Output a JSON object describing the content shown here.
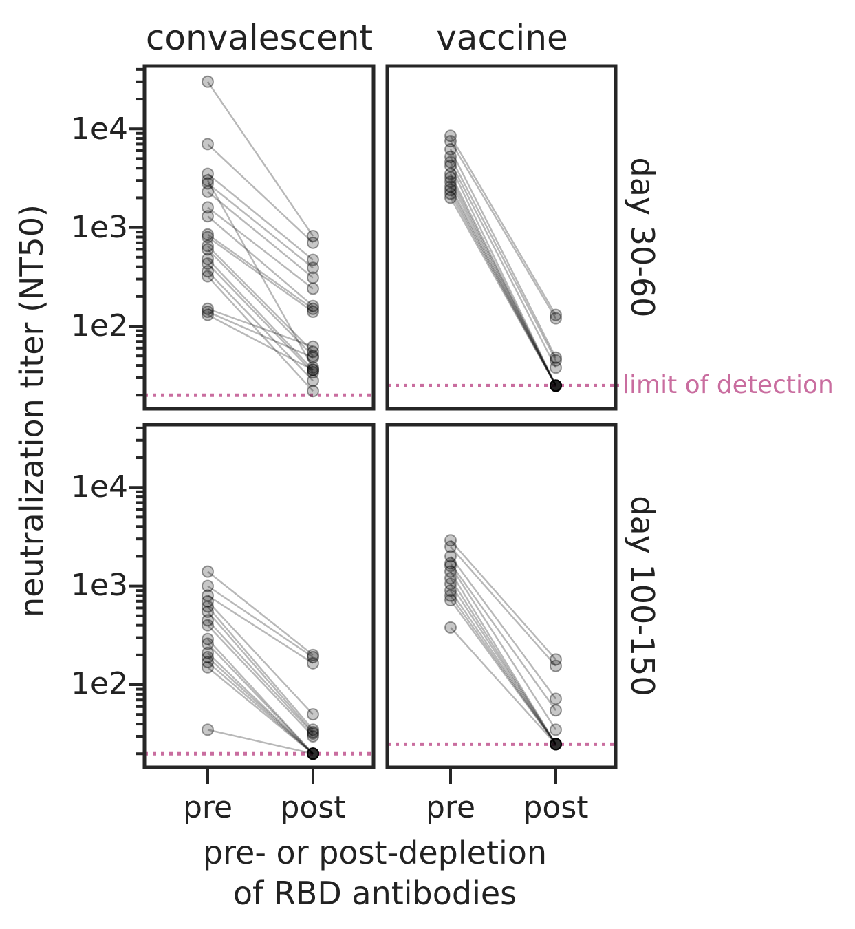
{
  "chart_data": {
    "type": "line",
    "y_scale": "log",
    "ylim": [
      15,
      40000
    ],
    "ylabel": "neutralization titer (NT50)",
    "xlabel": [
      "pre- or post-depletion",
      "of RBD antibodies"
    ],
    "categories": [
      "pre",
      "post"
    ],
    "y_ticks": [
      {
        "value": 100,
        "label": "1e2"
      },
      {
        "value": 1000,
        "label": "1e3"
      },
      {
        "value": 10000,
        "label": "1e4"
      }
    ],
    "columns": [
      "convalescent",
      "vaccine"
    ],
    "rows": [
      "day 30-60",
      "day 100-150"
    ],
    "limit_of_detection_label": "limit of detection",
    "lod_color": "#c96d9f",
    "point_color": "#000000",
    "panels": [
      {
        "column": "convalescent",
        "row": "day 30-60",
        "limit_of_detection": 20,
        "pairs": [
          [
            30000,
            820
          ],
          [
            7000,
            700
          ],
          [
            3500,
            470
          ],
          [
            2800,
            390
          ],
          [
            2300,
            310
          ],
          [
            1600,
            240
          ],
          [
            1300,
            160
          ],
          [
            850,
            150
          ],
          [
            800,
            140
          ],
          [
            650,
            55
          ],
          [
            600,
            50
          ],
          [
            480,
            36
          ],
          [
            430,
            34
          ],
          [
            360,
            28
          ],
          [
            320,
            22
          ],
          [
            150,
            62
          ],
          [
            140,
            48
          ],
          [
            130,
            36
          ],
          [
            3000,
            38
          ]
        ]
      },
      {
        "column": "vaccine",
        "row": "day 30-60",
        "limit_of_detection": 25,
        "pairs": [
          [
            8500,
            130
          ],
          [
            7500,
            120
          ],
          [
            6200,
            48
          ],
          [
            5200,
            45
          ],
          [
            4600,
            38
          ],
          [
            4200,
            25
          ],
          [
            3500,
            25
          ],
          [
            3200,
            25
          ],
          [
            2900,
            25
          ],
          [
            2600,
            25
          ],
          [
            2400,
            25
          ],
          [
            2200,
            25
          ],
          [
            2000,
            25
          ]
        ]
      },
      {
        "column": "convalescent",
        "row": "day 100-150",
        "limit_of_detection": 20,
        "pairs": [
          [
            1400,
            200
          ],
          [
            1000,
            190
          ],
          [
            800,
            165
          ],
          [
            700,
            50
          ],
          [
            620,
            35
          ],
          [
            550,
            33
          ],
          [
            450,
            32
          ],
          [
            400,
            30
          ],
          [
            290,
            20
          ],
          [
            260,
            20
          ],
          [
            210,
            20
          ],
          [
            190,
            20
          ],
          [
            170,
            20
          ],
          [
            150,
            20
          ],
          [
            35,
            20
          ]
        ]
      },
      {
        "column": "vaccine",
        "row": "day 100-150",
        "limit_of_detection": 25,
        "pairs": [
          [
            2900,
            180
          ],
          [
            2500,
            155
          ],
          [
            2000,
            72
          ],
          [
            1700,
            55
          ],
          [
            1600,
            35
          ],
          [
            1400,
            25
          ],
          [
            1200,
            25
          ],
          [
            1050,
            25
          ],
          [
            900,
            25
          ],
          [
            800,
            25
          ],
          [
            720,
            25
          ],
          [
            380,
            25
          ]
        ]
      }
    ]
  }
}
